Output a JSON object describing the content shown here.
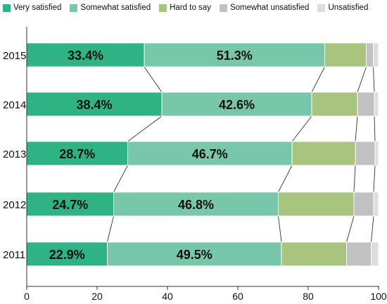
{
  "chart_data": {
    "type": "bar",
    "orientation": "horizontal",
    "stacked": true,
    "categories": [
      "2015",
      "2014",
      "2013",
      "2012",
      "2011"
    ],
    "series": [
      {
        "name": "Very satisfied",
        "color": "#2fb284",
        "values": [
          33.4,
          38.4,
          28.7,
          24.7,
          22.9
        ]
      },
      {
        "name": "Somewhat satisfied",
        "color": "#79c7ab",
        "values": [
          51.3,
          42.6,
          46.7,
          46.8,
          49.5
        ]
      },
      {
        "name": "Hard to say",
        "color": "#a9c47f",
        "values": [
          11.8,
          13.0,
          18.0,
          21.5,
          18.5
        ]
      },
      {
        "name": "Somewhat unsatisfied",
        "color": "#c1c1c1",
        "values": [
          2.0,
          4.8,
          5.6,
          5.6,
          7.0
        ]
      },
      {
        "name": "Unsatisfied",
        "color": "#dddddd",
        "values": [
          1.5,
          1.2,
          1.0,
          1.4,
          2.1
        ]
      }
    ],
    "data_labels": [
      [
        "33.4%",
        "51.3%"
      ],
      [
        "38.4%",
        "42.6%"
      ],
      [
        "28.7%",
        "46.7%"
      ],
      [
        "24.7%",
        "46.8%"
      ],
      [
        "22.9%",
        "49.5%"
      ]
    ],
    "x_ticks": [
      "0",
      "20",
      "40",
      "60",
      "80",
      "100"
    ],
    "xlim": [
      0,
      100
    ],
    "title": "",
    "xlabel": "",
    "ylabel": "",
    "legend_position": "top",
    "grid": false
  }
}
